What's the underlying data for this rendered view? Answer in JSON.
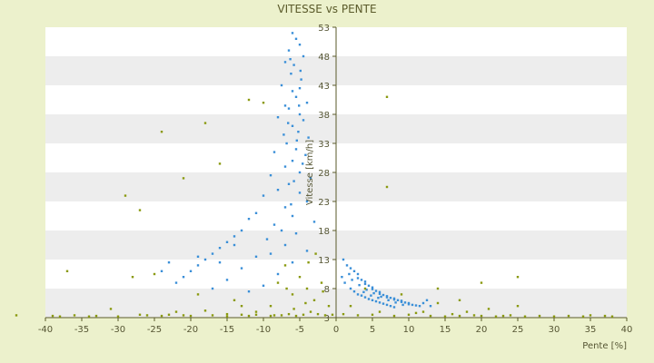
{
  "chart_data": {
    "type": "scatter",
    "title": "VITESSE vs PENTE",
    "xlabel": "Pente [%]",
    "ylabel": "Vitesse [km/h]",
    "xlim": [
      -40,
      40
    ],
    "ylim": [
      3,
      53
    ],
    "xticks": [
      -40,
      -35,
      -30,
      -25,
      -20,
      -15,
      -10,
      -5,
      0,
      5,
      10,
      15,
      20,
      25,
      30,
      35,
      40
    ],
    "yticks": [
      3,
      8,
      13,
      18,
      23,
      28,
      33,
      38,
      43,
      48,
      53
    ],
    "grid": "alternating horizontal bands",
    "legend": "none",
    "colors": {
      "series1": "#3a8fd8",
      "series2": "#8a9a10",
      "band": "#ededed",
      "axis": "#5a5a2a"
    },
    "series": [
      {
        "color": "#3a8fd8",
        "points": [
          [
            -6,
            52
          ],
          [
            -5.5,
            51
          ],
          [
            -5,
            50
          ],
          [
            -6.5,
            49
          ],
          [
            -4.5,
            48
          ],
          [
            -7,
            47
          ],
          [
            -5.8,
            46.5
          ],
          [
            -6.2,
            45
          ],
          [
            -4.8,
            44
          ],
          [
            -7.5,
            43
          ],
          [
            -5,
            42.5
          ],
          [
            -6,
            42
          ],
          [
            -5.5,
            41
          ],
          [
            -4,
            40
          ],
          [
            -7,
            39.5
          ],
          [
            -6.5,
            39
          ],
          [
            -5,
            38
          ],
          [
            -8,
            37.5
          ],
          [
            -4.5,
            37
          ],
          [
            -6,
            36
          ],
          [
            -5.2,
            35
          ],
          [
            -7.2,
            34.5
          ],
          [
            -3.8,
            34
          ],
          [
            -6.8,
            33
          ],
          [
            -5.5,
            32
          ],
          [
            -8.5,
            31.5
          ],
          [
            -4.2,
            31
          ],
          [
            -6,
            30
          ],
          [
            -7,
            29
          ],
          [
            -5,
            28
          ],
          [
            -9,
            27.5
          ],
          [
            -3.5,
            27
          ],
          [
            -6.5,
            26
          ],
          [
            -8,
            25
          ],
          [
            -5,
            24.5
          ],
          [
            -10,
            24
          ],
          [
            -4,
            23
          ],
          [
            -7,
            22
          ],
          [
            -11,
            21
          ],
          [
            -6,
            20.5
          ],
          [
            -12,
            20
          ],
          [
            -3,
            19.5
          ],
          [
            -8.5,
            19
          ],
          [
            -13,
            18
          ],
          [
            -5.5,
            17.5
          ],
          [
            -14,
            17
          ],
          [
            -9.5,
            16.5
          ],
          [
            -15,
            16
          ],
          [
            -7,
            15.5
          ],
          [
            -16,
            15
          ],
          [
            -4,
            14.5
          ],
          [
            -17,
            14
          ],
          [
            -11,
            13.5
          ],
          [
            -18,
            13
          ],
          [
            -6,
            12.5
          ],
          [
            -19,
            12
          ],
          [
            -13,
            11.5
          ],
          [
            -20,
            11
          ],
          [
            -8,
            10.5
          ],
          [
            -21,
            10
          ],
          [
            -15,
            9.5
          ],
          [
            -22,
            9
          ],
          [
            -10,
            8.5
          ],
          [
            -17,
            8
          ],
          [
            -12,
            7.5
          ],
          [
            -23,
            12.5
          ],
          [
            -24,
            11
          ],
          [
            -19,
            13.5
          ],
          [
            -14,
            15.5
          ],
          [
            -16,
            12.5
          ],
          [
            -9,
            14
          ],
          [
            -7.5,
            18
          ],
          [
            -6.2,
            22.5
          ],
          [
            -5.8,
            26.5
          ],
          [
            -4.6,
            29.5
          ],
          [
            -5.4,
            33.5
          ],
          [
            -6.6,
            36.5
          ],
          [
            -5.1,
            39.5
          ],
          [
            -4.9,
            45.5
          ],
          [
            -6.3,
            47.5
          ],
          [
            1,
            13
          ],
          [
            1.5,
            12
          ],
          [
            2,
            11.5
          ],
          [
            2.5,
            11
          ],
          [
            3,
            10.5
          ],
          [
            3,
            9.8
          ],
          [
            3.5,
            9.5
          ],
          [
            4,
            9.2
          ],
          [
            4,
            8.8
          ],
          [
            4.5,
            8.5
          ],
          [
            5,
            8.2
          ],
          [
            5,
            7.9
          ],
          [
            5.5,
            7.6
          ],
          [
            6,
            7.4
          ],
          [
            6,
            7.1
          ],
          [
            6.5,
            6.9
          ],
          [
            7,
            6.7
          ],
          [
            7,
            6.5
          ],
          [
            7.5,
            6.4
          ],
          [
            8,
            6.3
          ],
          [
            8,
            6.1
          ],
          [
            8.5,
            6
          ],
          [
            9,
            5.9
          ],
          [
            9,
            5.7
          ],
          [
            9.5,
            5.6
          ],
          [
            10,
            5.5
          ],
          [
            10,
            5.3
          ],
          [
            10.5,
            5.2
          ],
          [
            11,
            5.1
          ],
          [
            11.5,
            5
          ],
          [
            2,
            8
          ],
          [
            2.5,
            7.5
          ],
          [
            3,
            7
          ],
          [
            3.5,
            6.8
          ],
          [
            4,
            6.5
          ],
          [
            4.5,
            6.2
          ],
          [
            5,
            6
          ],
          [
            5.5,
            5.8
          ],
          [
            6,
            5.6
          ],
          [
            6.5,
            5.4
          ],
          [
            7,
            5.2
          ],
          [
            7.5,
            5
          ],
          [
            8,
            4.8
          ],
          [
            3.2,
            8.6
          ],
          [
            4.2,
            7.8
          ],
          [
            5.2,
            7.2
          ],
          [
            6.2,
            6.6
          ],
          [
            7.2,
            6
          ],
          [
            8.2,
            5.6
          ],
          [
            9.2,
            5.2
          ],
          [
            12,
            5.5
          ],
          [
            12.5,
            6
          ],
          [
            13,
            5
          ],
          [
            1.2,
            9
          ],
          [
            0.8,
            10
          ],
          [
            1.8,
            10.5
          ],
          [
            2.2,
            9.5
          ],
          [
            3.8,
            7.4
          ],
          [
            4.8,
            6.8
          ],
          [
            5.8,
            6.4
          ]
        ]
      },
      {
        "color": "#8a9a10",
        "points": [
          [
            -39,
            3.3
          ],
          [
            -38,
            3.2
          ],
          [
            -37,
            11
          ],
          [
            -36,
            3.4
          ],
          [
            -33,
            3.3
          ],
          [
            -31,
            4.5
          ],
          [
            -30,
            3.2
          ],
          [
            -29,
            24
          ],
          [
            -28,
            10
          ],
          [
            -27,
            21.5
          ],
          [
            -26,
            3.4
          ],
          [
            -25,
            10.5
          ],
          [
            -24,
            35
          ],
          [
            -23,
            3.5
          ],
          [
            -22,
            4
          ],
          [
            -21,
            27
          ],
          [
            -20,
            3.3
          ],
          [
            -19,
            7
          ],
          [
            -18,
            36.5
          ],
          [
            -17,
            3.4
          ],
          [
            -16,
            29.5
          ],
          [
            -15,
            3.2
          ],
          [
            -14,
            6
          ],
          [
            -13,
            3.5
          ],
          [
            -12,
            40.5
          ],
          [
            -11,
            4
          ],
          [
            -10,
            40
          ],
          [
            -9,
            3.3
          ],
          [
            -8,
            9
          ],
          [
            -7.5,
            3.4
          ],
          [
            -7,
            12
          ],
          [
            -6.5,
            3.6
          ],
          [
            -6,
            7
          ],
          [
            -5.5,
            3.3
          ],
          [
            -5,
            10
          ],
          [
            -4.5,
            3.5
          ],
          [
            -4,
            8
          ],
          [
            -3.5,
            4
          ],
          [
            -3,
            6
          ],
          [
            -2.5,
            3.6
          ],
          [
            -2,
            9
          ],
          [
            -1.5,
            3.4
          ],
          [
            -1,
            5
          ],
          [
            -0.5,
            3.5
          ],
          [
            -3.8,
            12.5
          ],
          [
            -2.8,
            14
          ],
          [
            -1.8,
            7.5
          ],
          [
            -4.2,
            5.5
          ],
          [
            -5.8,
            4.5
          ],
          [
            -6.8,
            8
          ],
          [
            1,
            3.6
          ],
          [
            2,
            5
          ],
          [
            3,
            3.4
          ],
          [
            4,
            8
          ],
          [
            5,
            3.5
          ],
          [
            6,
            4
          ],
          [
            7,
            41
          ],
          [
            7,
            25.5
          ],
          [
            8,
            3.3
          ],
          [
            9,
            7
          ],
          [
            10,
            3.5
          ],
          [
            11,
            3.8
          ],
          [
            12,
            4
          ],
          [
            13,
            3.3
          ],
          [
            14,
            5.5
          ],
          [
            15,
            3.2
          ],
          [
            16,
            3.6
          ],
          [
            17,
            3.3
          ],
          [
            18,
            4
          ],
          [
            19,
            3.4
          ],
          [
            20,
            3.3
          ],
          [
            21,
            4.5
          ],
          [
            22,
            3.2
          ],
          [
            23,
            3.3
          ],
          [
            24,
            3.4
          ],
          [
            25,
            5
          ],
          [
            26,
            3.2
          ],
          [
            28,
            3.3
          ],
          [
            30,
            3.2
          ],
          [
            32,
            3.3
          ],
          [
            34,
            3.2
          ],
          [
            35,
            3.4
          ],
          [
            37,
            3.3
          ],
          [
            38,
            3.2
          ],
          [
            -44,
            3.4
          ],
          [
            20,
            9
          ],
          [
            25,
            10
          ],
          [
            17,
            6
          ],
          [
            14,
            8
          ],
          [
            -34,
            3.2
          ],
          [
            -27,
            3.5
          ],
          [
            -24,
            3.3
          ],
          [
            -21,
            3.4
          ],
          [
            -18,
            4.2
          ],
          [
            -15,
            3.6
          ],
          [
            -12,
            3.3
          ],
          [
            -9,
            5
          ],
          [
            -11,
            3.5
          ],
          [
            -13,
            5
          ],
          [
            -8.5,
            3.4
          ]
        ]
      }
    ]
  }
}
